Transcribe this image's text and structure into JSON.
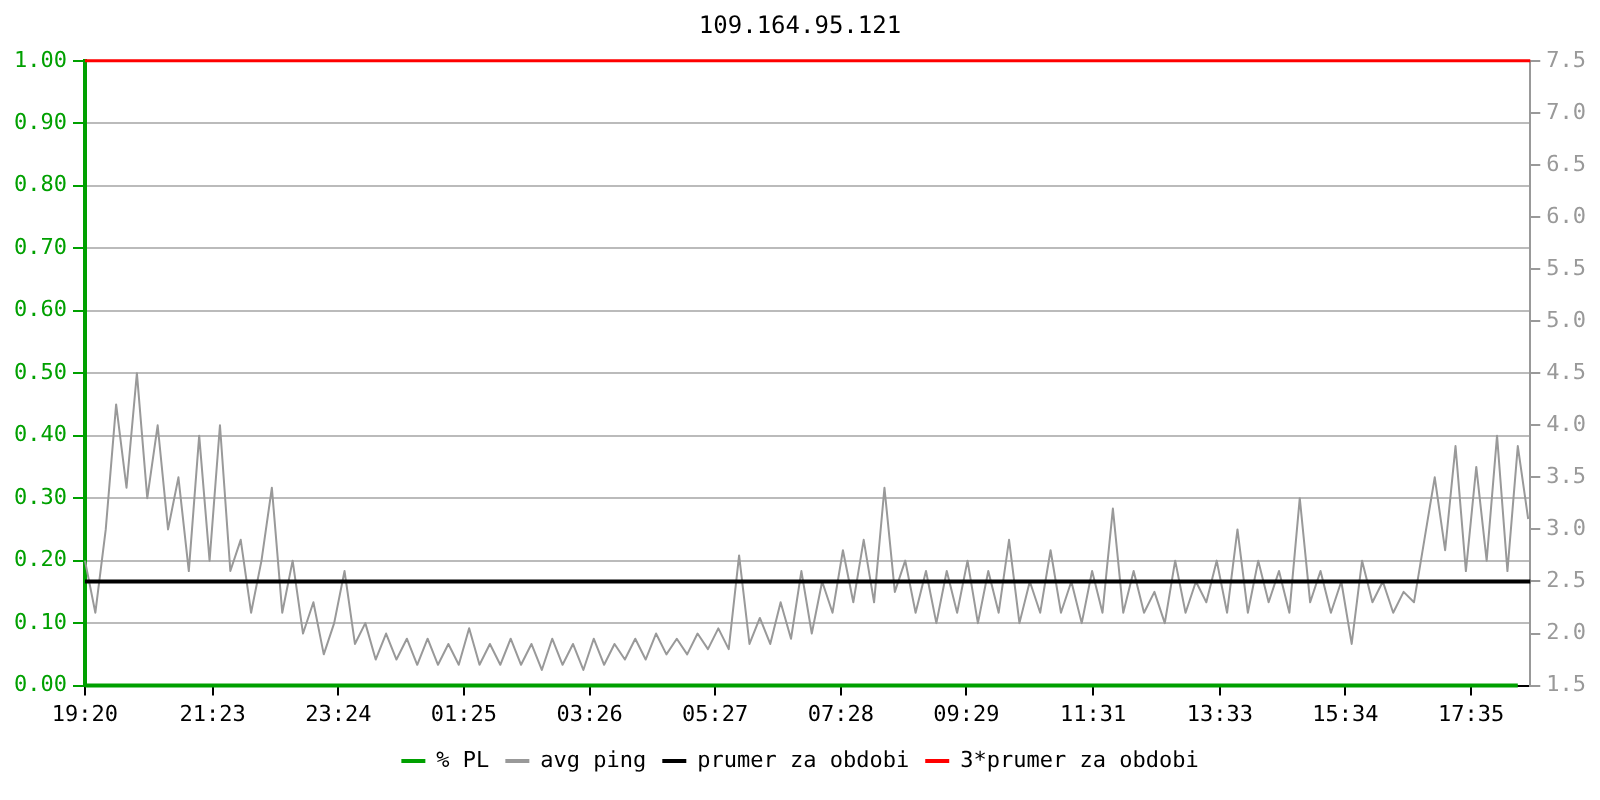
{
  "chart_data": {
    "type": "line",
    "title": "109.164.95.121",
    "xlim": [
      "--01-01T19:20",
      "--01-02T18:32"
    ],
    "xticks": [
      {
        "value": "--01-01T19:20",
        "label": "19:20"
      },
      {
        "value": "--01-01T21:23",
        "label": "21:23"
      },
      {
        "value": "--01-01T23:24",
        "label": "23:24"
      },
      {
        "value": "--01-02T01:25",
        "label": "01:25"
      },
      {
        "value": "--01-02T03:26",
        "label": "03:26"
      },
      {
        "value": "--01-02T05:27",
        "label": "05:27"
      },
      {
        "value": "--01-02T07:28",
        "label": "07:28"
      },
      {
        "value": "--01-02T09:29",
        "label": "09:29"
      },
      {
        "value": "--01-02T11:31",
        "label": "11:31"
      },
      {
        "value": "--01-02T13:33",
        "label": "13:33"
      },
      {
        "value": "--01-02T15:34",
        "label": "15:34"
      },
      {
        "value": "--01-02T17:35",
        "label": "17:35"
      }
    ],
    "ylim": [
      0,
      1
    ],
    "yticks": [
      {
        "value": 0,
        "label": "0.00"
      },
      {
        "value": 0.1,
        "label": "0.10"
      },
      {
        "value": 0.2,
        "label": "0.20"
      },
      {
        "value": 0.3,
        "label": "0.30"
      },
      {
        "value": 0.4,
        "label": "0.40"
      },
      {
        "value": 0.5,
        "label": "0.50"
      },
      {
        "value": 0.6,
        "label": "0.60"
      },
      {
        "value": 0.7,
        "label": "0.70"
      },
      {
        "value": 0.8,
        "label": "0.80"
      },
      {
        "value": 0.9,
        "label": "0.90"
      },
      {
        "value": 1,
        "label": "1.00"
      }
    ],
    "y2lim": [
      1.5,
      7.5
    ],
    "y2ticks": [
      1.5,
      {
        "value": 2,
        "label": "2.0"
      },
      2.5,
      {
        "value": 3,
        "label": "3.0"
      },
      3.5,
      {
        "value": 4,
        "label": "4.0"
      },
      4.5,
      {
        "value": 5,
        "label": "5.0"
      },
      5.5,
      {
        "value": 6,
        "label": "6.0"
      },
      6.5,
      {
        "value": 7,
        "label": "7.0"
      },
      7.5
    ],
    "grid": "y",
    "legend": "bottom",
    "marker": "none",
    "line_style": "solid",
    "series": [
      {
        "name": "% PL",
        "color": "#00a000",
        "x": [
          "--01-01T19:20",
          "--01-02T18:20"
        ],
        "values": [
          0,
          0
        ]
      },
      {
        "name": "avg ping",
        "color": "#999999",
        "axis": "y2",
        "x": [
          "--01-01T19:20",
          "--01-01T19:30",
          "--01-01T19:40",
          "--01-01T19:50",
          "--01-01T20:00",
          "--01-01T20:10",
          "--01-01T20:20",
          "--01-01T20:30",
          "--01-01T20:40",
          "--01-01T20:50",
          "--01-01T21:00",
          "--01-01T21:10",
          "--01-01T21:20",
          "--01-01T21:30",
          "--01-01T21:40",
          "--01-01T21:50",
          "--01-01T22:00",
          "--01-01T22:10",
          "--01-01T22:20",
          "--01-01T22:30",
          "--01-01T22:40",
          "--01-01T22:50",
          "--01-01T23:00",
          "--01-01T23:10",
          "--01-01T23:20",
          "--01-01T23:30",
          "--01-01T23:40",
          "--01-01T23:50",
          "--01-02T00:00",
          "--01-02T00:10",
          "--01-02T00:20",
          "--01-02T00:30",
          "--01-02T00:40",
          "--01-02T00:50",
          "--01-02T01:00",
          "--01-02T01:10",
          "--01-02T01:20",
          "--01-02T01:30",
          "--01-02T01:40",
          "--01-02T01:50",
          "--01-02T02:00",
          "--01-02T02:10",
          "--01-02T02:20",
          "--01-02T02:30",
          "--01-02T02:40",
          "--01-02T02:50",
          "--01-02T03:00",
          "--01-02T03:10",
          "--01-02T03:20",
          "--01-02T03:30",
          "--01-02T03:40",
          "--01-02T03:50",
          "--01-02T04:00",
          "--01-02T04:10",
          "--01-02T04:20",
          "--01-02T04:30",
          "--01-02T04:40",
          "--01-02T04:50",
          "--01-02T05:00",
          "--01-02T05:10",
          "--01-02T05:20",
          "--01-02T05:30",
          "--01-02T05:40",
          "--01-02T05:50",
          "--01-02T06:00",
          "--01-02T06:10",
          "--01-02T06:20",
          "--01-02T06:30",
          "--01-02T06:40",
          "--01-02T06:50",
          "--01-02T07:00",
          "--01-02T07:10",
          "--01-02T07:20",
          "--01-02T07:30",
          "--01-02T07:40",
          "--01-02T07:50",
          "--01-02T08:00",
          "--01-02T08:10",
          "--01-02T08:20",
          "--01-02T08:30",
          "--01-02T08:40",
          "--01-02T08:50",
          "--01-02T09:00",
          "--01-02T09:10",
          "--01-02T09:20",
          "--01-02T09:30",
          "--01-02T09:40",
          "--01-02T09:50",
          "--01-02T10:00",
          "--01-02T10:10",
          "--01-02T10:20",
          "--01-02T10:30",
          "--01-02T10:40",
          "--01-02T10:50",
          "--01-02T11:00",
          "--01-02T11:10",
          "--01-02T11:20",
          "--01-02T11:30",
          "--01-02T11:40",
          "--01-02T11:50",
          "--01-02T12:00",
          "--01-02T12:10",
          "--01-02T12:20",
          "--01-02T12:30",
          "--01-02T12:40",
          "--01-02T12:50",
          "--01-02T13:00",
          "--01-02T13:10",
          "--01-02T13:20",
          "--01-02T13:30",
          "--01-02T13:40",
          "--01-02T13:50",
          "--01-02T14:00",
          "--01-02T14:10",
          "--01-02T14:20",
          "--01-02T14:30",
          "--01-02T14:40",
          "--01-02T14:50",
          "--01-02T15:00",
          "--01-02T15:10",
          "--01-02T15:20",
          "--01-02T15:30",
          "--01-02T15:40",
          "--01-02T15:50",
          "--01-02T16:00",
          "--01-02T16:10",
          "--01-02T16:20",
          "--01-02T16:30",
          "--01-02T16:40",
          "--01-02T16:50",
          "--01-02T17:00",
          "--01-02T17:10",
          "--01-02T17:20",
          "--01-02T17:30",
          "--01-02T17:40",
          "--01-02T17:50",
          "--01-02T18:00",
          "--01-02T18:10",
          "--01-02T18:20",
          "--01-02T18:30"
        ],
        "values": [
          2.7,
          2.2,
          3.0,
          4.2,
          3.4,
          4.5,
          3.3,
          4.0,
          3.0,
          3.5,
          2.6,
          3.9,
          2.7,
          4.0,
          2.6,
          2.9,
          2.2,
          2.7,
          3.4,
          2.2,
          2.7,
          2.0,
          2.3,
          1.8,
          2.1,
          2.6,
          1.9,
          2.1,
          1.75,
          2.0,
          1.75,
          1.95,
          1.7,
          1.95,
          1.7,
          1.9,
          1.7,
          2.05,
          1.7,
          1.9,
          1.7,
          1.95,
          1.7,
          1.9,
          1.65,
          1.95,
          1.7,
          1.9,
          1.65,
          1.95,
          1.7,
          1.9,
          1.75,
          1.95,
          1.75,
          2.0,
          1.8,
          1.95,
          1.8,
          2.0,
          1.85,
          2.05,
          1.85,
          2.75,
          1.9,
          2.15,
          1.9,
          2.3,
          1.95,
          2.6,
          2.0,
          2.5,
          2.2,
          2.8,
          2.3,
          2.9,
          2.3,
          3.4,
          2.4,
          2.7,
          2.2,
          2.6,
          2.1,
          2.6,
          2.2,
          2.7,
          2.1,
          2.6,
          2.2,
          2.9,
          2.1,
          2.5,
          2.2,
          2.8,
          2.2,
          2.5,
          2.1,
          2.6,
          2.2,
          3.2,
          2.2,
          2.6,
          2.2,
          2.4,
          2.1,
          2.7,
          2.2,
          2.5,
          2.3,
          2.7,
          2.2,
          3.0,
          2.2,
          2.7,
          2.3,
          2.6,
          2.2,
          3.3,
          2.3,
          2.6,
          2.2,
          2.5,
          1.9,
          2.7,
          2.3,
          2.5,
          2.2,
          2.4,
          2.3,
          2.9,
          3.5,
          2.8,
          3.8,
          2.6,
          3.6,
          2.7,
          3.9,
          2.6,
          3.8,
          3.1
        ]
      }
    ],
    "ref_lines": [
      {
        "axis": "y2",
        "value": 2.5,
        "label": "prumer za obdobi",
        "color": "#000000"
      },
      {
        "axis": "y2",
        "value": 7.5,
        "label": "3*prumer za obdobi",
        "color": "#ff0000"
      }
    ]
  }
}
